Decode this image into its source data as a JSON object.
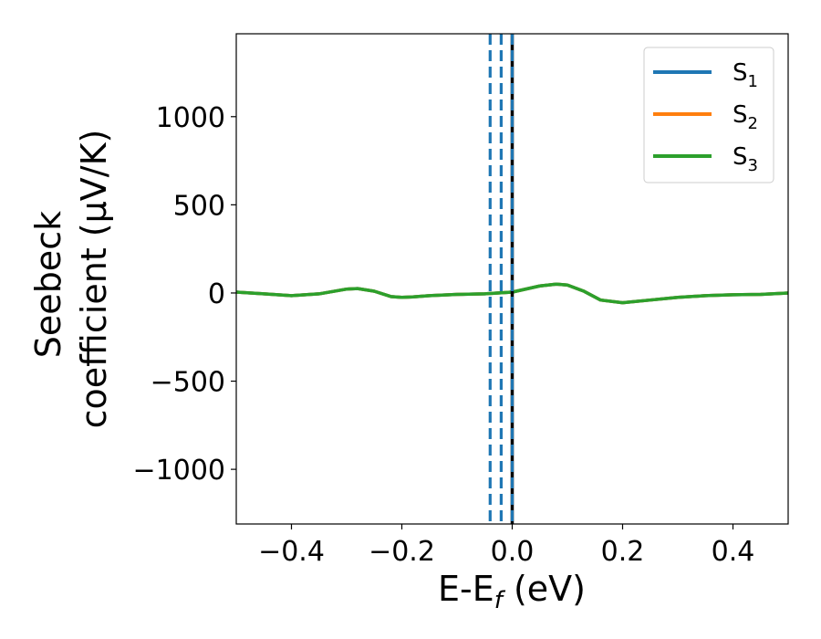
{
  "chart_data": {
    "type": "line",
    "xlabel": "E-E_f (eV)",
    "xlabel_parts": {
      "main": "E-E",
      "sub": "f",
      "rest": " (eV)"
    },
    "ylabel": "Seebeck coefficient (μV/K)",
    "ylabel_lines": [
      "Seebeck",
      "coefficient  (μV/K)"
    ],
    "xlim": [
      -0.5,
      0.5
    ],
    "ylim": [
      -1310,
      1470
    ],
    "xticks": [
      {
        "value": -0.4,
        "label": "−0.4"
      },
      {
        "value": -0.2,
        "label": "−0.2"
      },
      {
        "value": 0.0,
        "label": "0.0"
      },
      {
        "value": 0.2,
        "label": "0.2"
      },
      {
        "value": 0.4,
        "label": "0.4"
      }
    ],
    "yticks": [
      {
        "value": 1000,
        "label": "1000"
      },
      {
        "value": 500,
        "label": "500"
      },
      {
        "value": 0,
        "label": "0"
      },
      {
        "value": -500,
        "label": "−500"
      },
      {
        "value": -1000,
        "label": "−1000"
      }
    ],
    "grid": false,
    "legend_position": "top-right",
    "x": [
      -0.5,
      -0.45,
      -0.4,
      -0.35,
      -0.3,
      -0.28,
      -0.25,
      -0.22,
      -0.2,
      -0.18,
      -0.15,
      -0.1,
      -0.05,
      0.0,
      0.05,
      0.08,
      0.1,
      0.13,
      0.16,
      0.2,
      0.25,
      0.3,
      0.35,
      0.4,
      0.45,
      0.5
    ],
    "series": [
      {
        "name": "S1",
        "name_main": "S",
        "name_sub": "1",
        "color": "#1f77b4",
        "values": [
          5,
          -5,
          -15,
          -5,
          22,
          25,
          10,
          -20,
          -25,
          -22,
          -15,
          -8,
          -5,
          5,
          40,
          50,
          45,
          10,
          -40,
          -55,
          -40,
          -25,
          -15,
          -10,
          -8,
          0
        ]
      },
      {
        "name": "S2",
        "name_main": "S",
        "name_sub": "2",
        "color": "#ff7f0e",
        "values": [
          5,
          -5,
          -15,
          -5,
          22,
          25,
          10,
          -20,
          -25,
          -22,
          -15,
          -8,
          -5,
          5,
          40,
          50,
          45,
          10,
          -40,
          -55,
          -40,
          -25,
          -15,
          -10,
          -8,
          0
        ]
      },
      {
        "name": "S3",
        "name_main": "S",
        "name_sub": "3",
        "color": "#2ca02c",
        "values": [
          5,
          -5,
          -15,
          -5,
          22,
          25,
          10,
          -20,
          -25,
          -22,
          -15,
          -8,
          -5,
          5,
          40,
          50,
          45,
          10,
          -40,
          -55,
          -40,
          -25,
          -15,
          -10,
          -8,
          0
        ]
      }
    ],
    "vlines": [
      {
        "x": -0.04,
        "color": "#1f77b4",
        "style": "dashed"
      },
      {
        "x": -0.02,
        "color": "#1f77b4",
        "style": "dashed"
      },
      {
        "x": 0.0,
        "color": "#000000",
        "style": "solid"
      },
      {
        "x": 0.0,
        "color": "#1f77b4",
        "style": "dashed"
      }
    ]
  }
}
